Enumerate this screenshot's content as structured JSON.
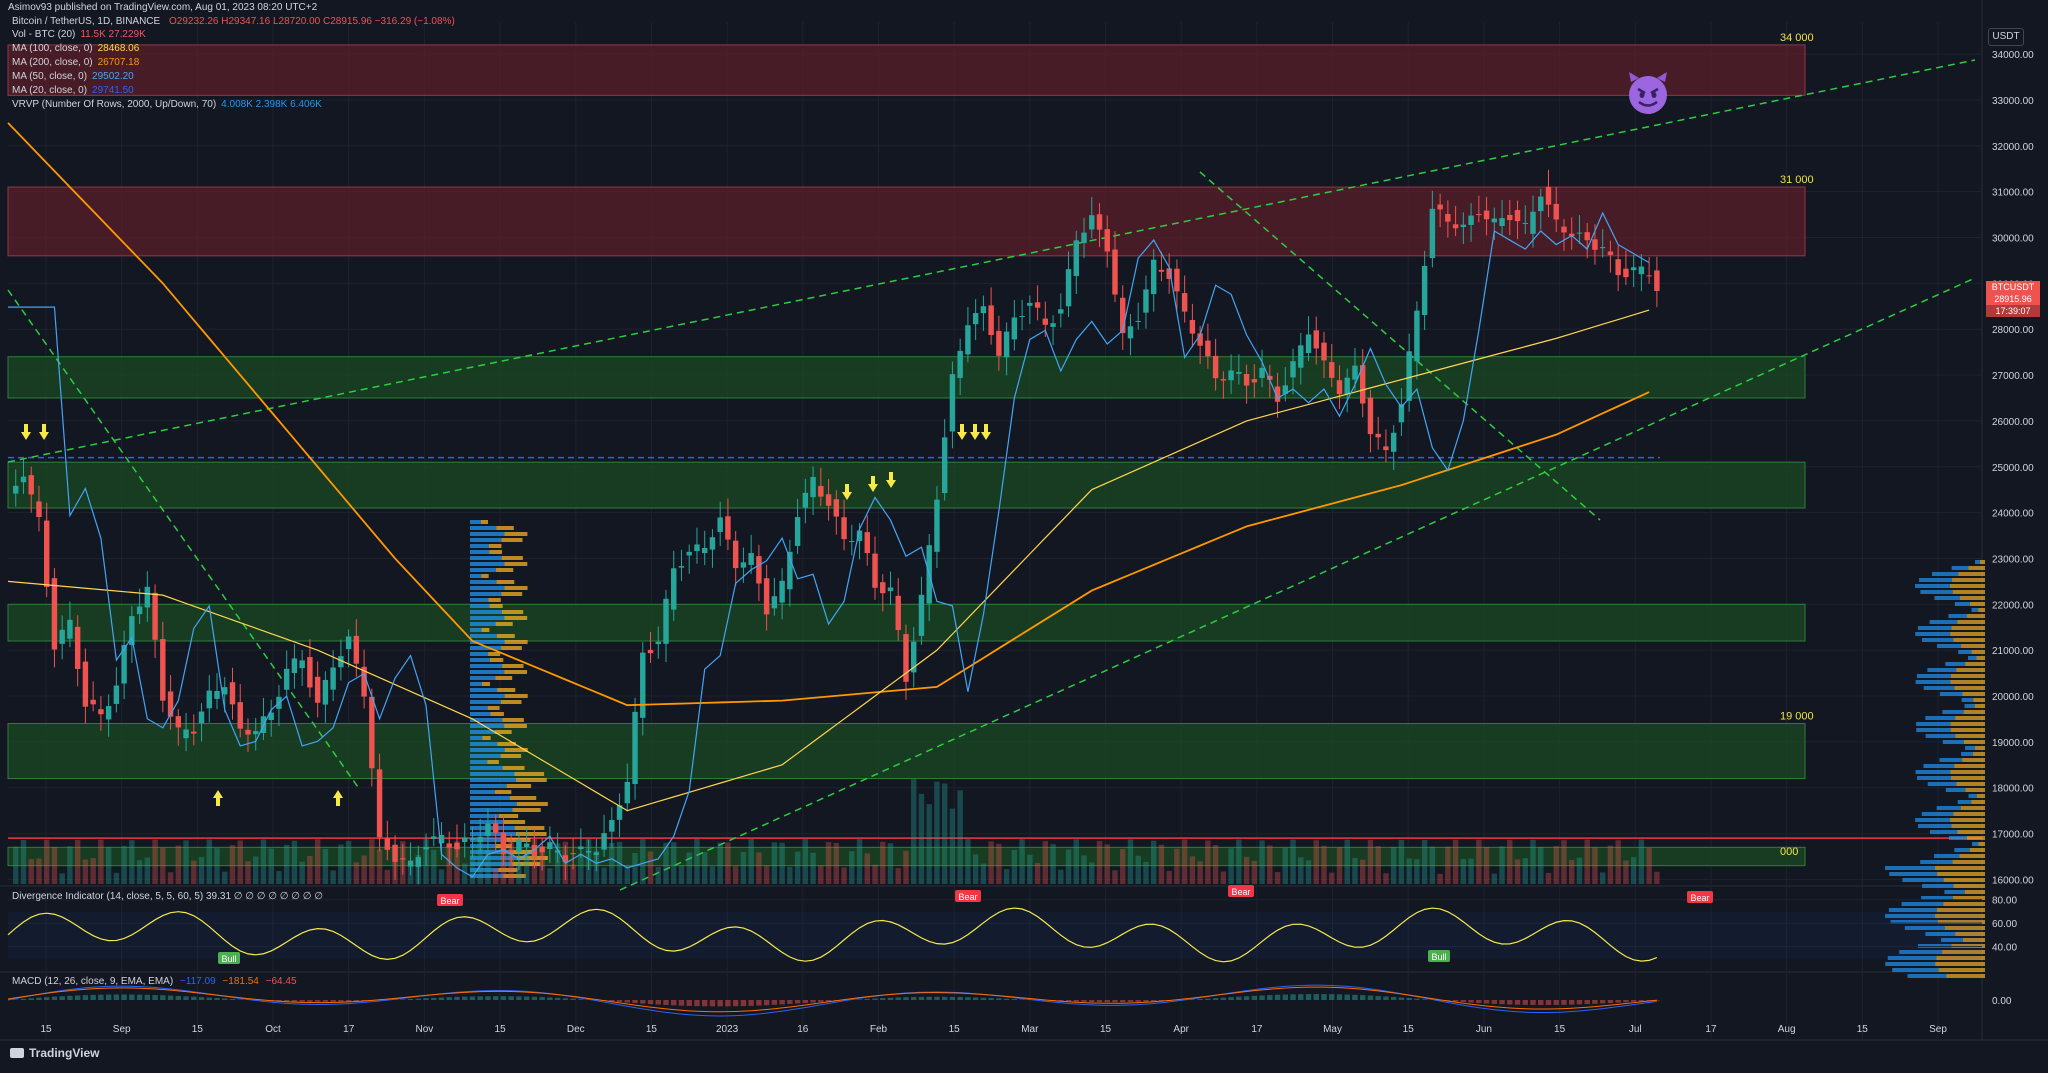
{
  "header": {
    "published": "Asimov93 published on TradingView.com, Aug 01, 2023 08:20 UTC+2",
    "symbol": "Bitcoin / TetherUS, 1D, BINANCE",
    "ohlc": "O29232.26 H29347.16 L28720.00 C28915.96 −316.29 (−1.08%)"
  },
  "legend": [
    {
      "name": "Vol - BTC (20)",
      "value": "11.5K  27.229K",
      "color": "#f7525f"
    },
    {
      "name": "MA (100, close, 0)",
      "value": "28468.06",
      "color": "#ffd54f"
    },
    {
      "name": "MA (200, close, 0)",
      "value": "26707.18",
      "color": "#ff9800"
    },
    {
      "name": "MA (50, close, 0)",
      "value": "29502.20",
      "color": "#42a5f5"
    },
    {
      "name": "MA (20, close, 0)",
      "value": "29741.50",
      "color": "#2962ff"
    },
    {
      "name": "VRVP (Number Of Rows, 2000, Up/Down, 70)",
      "value": "4.008K  2.398K  6.406K",
      "color": "#2196f3"
    }
  ],
  "price_axis": {
    "unit": "USDT"
  },
  "price_tag": {
    "symbol": "BTCUSDT",
    "price": "28915.96",
    "countdown": "17:39:07"
  },
  "level_labels": {
    "top": "34 000",
    "mid": "31 000",
    "low": "19 000",
    "bottom": "000"
  },
  "indicators": {
    "divergence": "Divergence Indicator (14, close, 5, 5, 60, 5)  39.31  ∅ ∅ ∅ ∅ ∅ ∅ ∅ ∅",
    "macd": "MACD (12, 26, close, 9, EMA, EMA)",
    "macd_values": [
      "−117.09",
      "−181.54",
      "−64.45"
    ],
    "divergence_ticks": [
      "80.00",
      "60.00",
      "40.00"
    ],
    "macd_tick": "0.00",
    "bull_labels": [
      "Bull",
      "Bull"
    ],
    "bear_labels": [
      "Bear",
      "Bear",
      "Bear",
      "Bear"
    ]
  },
  "brand": "TradingView",
  "colors": {
    "background": "#131722",
    "up": "#26a69a",
    "down": "#ef5350",
    "resistance_zone": "#5b1f29",
    "support_zone": "#1a4a22",
    "trendline": "#2ecc40"
  },
  "chart_data": {
    "type": "candlestick",
    "symbol": "Bitcoin / TetherUS, 1D, BINANCE",
    "y_ticks": [
      34000,
      33000,
      32000,
      31000,
      30000,
      29000,
      28000,
      27000,
      26000,
      25000,
      24000,
      23000,
      22000,
      21000,
      20000,
      19000,
      18000,
      17000,
      16000
    ],
    "ylim": [
      15900,
      34700
    ],
    "x_labels": [
      "15",
      "Sep",
      "15",
      "Oct",
      "17",
      "Nov",
      "15",
      "Dec",
      "15",
      "2023",
      "16",
      "Feb",
      "15",
      "Mar",
      "15",
      "Apr",
      "17",
      "May",
      "15",
      "Jun",
      "15",
      "Jul",
      "17",
      "Aug",
      "15",
      "Sep"
    ],
    "price_path": [
      [
        0,
        24300
      ],
      [
        2,
        24900
      ],
      [
        4,
        23800
      ],
      [
        6,
        21100
      ],
      [
        8,
        21600
      ],
      [
        10,
        19800
      ],
      [
        12,
        19600
      ],
      [
        14,
        20200
      ],
      [
        16,
        21800
      ],
      [
        18,
        22300
      ],
      [
        20,
        20000
      ],
      [
        22,
        19200
      ],
      [
        24,
        19300
      ],
      [
        26,
        20000
      ],
      [
        28,
        20300
      ],
      [
        30,
        19200
      ],
      [
        32,
        19300
      ],
      [
        34,
        19600
      ],
      [
        36,
        20600
      ],
      [
        38,
        20800
      ],
      [
        40,
        19800
      ],
      [
        42,
        20700
      ],
      [
        44,
        21200
      ],
      [
        46,
        20100
      ],
      [
        48,
        16800
      ],
      [
        50,
        16500
      ],
      [
        52,
        16300
      ],
      [
        54,
        16800
      ],
      [
        56,
        16900
      ],
      [
        58,
        16700
      ],
      [
        60,
        16900
      ],
      [
        62,
        17200
      ],
      [
        64,
        16600
      ],
      [
        66,
        16800
      ],
      [
        68,
        16600
      ],
      [
        70,
        16700
      ],
      [
        72,
        16500
      ],
      [
        74,
        16600
      ],
      [
        76,
        16700
      ],
      [
        78,
        17200
      ],
      [
        80,
        18200
      ],
      [
        82,
        20900
      ],
      [
        84,
        21200
      ],
      [
        86,
        22800
      ],
      [
        88,
        23100
      ],
      [
        90,
        23300
      ],
      [
        92,
        23800
      ],
      [
        94,
        22900
      ],
      [
        96,
        23000
      ],
      [
        98,
        21900
      ],
      [
        100,
        22400
      ],
      [
        102,
        24000
      ],
      [
        104,
        24700
      ],
      [
        106,
        24200
      ],
      [
        108,
        23400
      ],
      [
        110,
        23600
      ],
      [
        112,
        22400
      ],
      [
        114,
        22300
      ],
      [
        116,
        20400
      ],
      [
        118,
        22100
      ],
      [
        120,
        24400
      ],
      [
        122,
        26900
      ],
      [
        124,
        28200
      ],
      [
        126,
        28400
      ],
      [
        128,
        27500
      ],
      [
        130,
        28200
      ],
      [
        132,
        28600
      ],
      [
        134,
        28100
      ],
      [
        136,
        28400
      ],
      [
        138,
        30000
      ],
      [
        140,
        30400
      ],
      [
        142,
        29800
      ],
      [
        144,
        27800
      ],
      [
        146,
        28300
      ],
      [
        148,
        29400
      ],
      [
        150,
        29200
      ],
      [
        152,
        28300
      ],
      [
        154,
        27700
      ],
      [
        156,
        26900
      ],
      [
        158,
        27100
      ],
      [
        160,
        26800
      ],
      [
        162,
        27100
      ],
      [
        164,
        26500
      ],
      [
        166,
        27200
      ],
      [
        168,
        28000
      ],
      [
        170,
        27200
      ],
      [
        172,
        26700
      ],
      [
        174,
        27100
      ],
      [
        176,
        25800
      ],
      [
        178,
        25300
      ],
      [
        180,
        26400
      ],
      [
        182,
        28400
      ],
      [
        184,
        30600
      ],
      [
        186,
        30400
      ],
      [
        188,
        30200
      ],
      [
        190,
        30600
      ],
      [
        192,
        30300
      ],
      [
        194,
        30500
      ],
      [
        196,
        30200
      ],
      [
        198,
        31000
      ],
      [
        200,
        30300
      ],
      [
        202,
        30100
      ],
      [
        204,
        29900
      ],
      [
        206,
        29800
      ],
      [
        208,
        29200
      ],
      [
        210,
        29300
      ],
      [
        212,
        29230
      ],
      [
        213,
        28916
      ]
    ],
    "ma100_path": [
      [
        0,
        22500
      ],
      [
        20,
        22200
      ],
      [
        40,
        21000
      ],
      [
        60,
        19500
      ],
      [
        80,
        17500
      ],
      [
        100,
        18500
      ],
      [
        120,
        21000
      ],
      [
        140,
        24500
      ],
      [
        160,
        26000
      ],
      [
        180,
        26900
      ],
      [
        200,
        27800
      ],
      [
        213,
        28468
      ]
    ],
    "ma200_path": [
      [
        0,
        32500
      ],
      [
        20,
        29000
      ],
      [
        40,
        25000
      ],
      [
        50,
        23000
      ],
      [
        60,
        21200
      ],
      [
        80,
        19800
      ],
      [
        100,
        19900
      ],
      [
        120,
        20200
      ],
      [
        140,
        22300
      ],
      [
        160,
        23700
      ],
      [
        180,
        24600
      ],
      [
        200,
        25700
      ],
      [
        213,
        26707
      ]
    ],
    "resistance_zones": [
      [
        33100,
        34200
      ],
      [
        29600,
        31100
      ]
    ],
    "support_zones": [
      [
        26500,
        27400
      ],
      [
        24100,
        25100
      ],
      [
        21200,
        22000
      ],
      [
        18200,
        19400
      ],
      [
        16300,
        16700
      ]
    ],
    "key_levels": [
      {
        "price": 25200,
        "style": "dashed",
        "color": "#2962ff"
      },
      {
        "price": 16900,
        "style": "solid",
        "color": "#f23645"
      }
    ]
  }
}
